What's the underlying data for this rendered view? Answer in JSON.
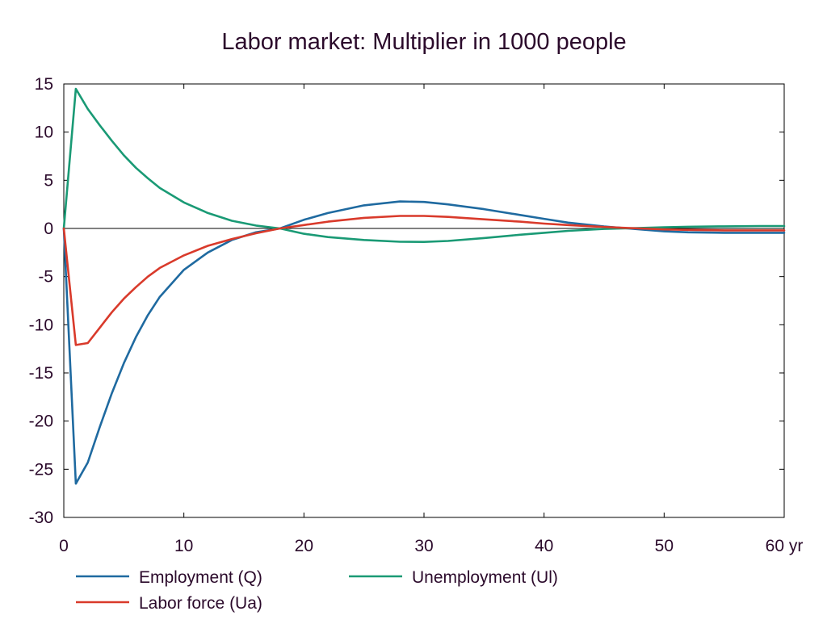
{
  "chart_data": {
    "type": "line",
    "title": "Labor market: Multiplier in 1000 people",
    "xlabel": "",
    "ylabel": "",
    "xlim": [
      0,
      60
    ],
    "ylim": [
      -30,
      15
    ],
    "x_ticks": [
      0,
      10,
      20,
      30,
      40,
      50,
      60
    ],
    "x_tick_labels": [
      "0",
      "10",
      "20",
      "30",
      "40",
      "50",
      "60 yr"
    ],
    "y_ticks": [
      15,
      10,
      5,
      0,
      -5,
      -10,
      -15,
      -20,
      -25,
      -30
    ],
    "y_tick_labels": [
      "15",
      "10",
      "5",
      "0",
      "-5",
      "-10",
      "-15",
      "-20",
      "-25",
      "-30"
    ],
    "grid": false,
    "zero_line": true,
    "legend_position": "bottom",
    "x": [
      0,
      1,
      2,
      3,
      4,
      5,
      6,
      7,
      8,
      10,
      12,
      14,
      16,
      18,
      20,
      22,
      25,
      28,
      30,
      32,
      35,
      38,
      40,
      42,
      45,
      48,
      50,
      52,
      55,
      58,
      60
    ],
    "series": [
      {
        "name": "Employment (Q)",
        "color": "#1f6aa0",
        "values": [
          0,
          -26.5,
          -24.3,
          -20.6,
          -17.1,
          -14.0,
          -11.3,
          -9.0,
          -7.1,
          -4.3,
          -2.5,
          -1.2,
          -0.4,
          0,
          0.9,
          1.6,
          2.4,
          2.8,
          2.75,
          2.5,
          2.0,
          1.4,
          1.0,
          0.6,
          0.2,
          -0.1,
          -0.3,
          -0.4,
          -0.45,
          -0.45,
          -0.45
        ]
      },
      {
        "name": "Unemployment (Ul)",
        "color": "#1a9a75",
        "values": [
          0,
          14.5,
          12.4,
          10.7,
          9.1,
          7.6,
          6.3,
          5.2,
          4.2,
          2.7,
          1.6,
          0.8,
          0.3,
          0,
          -0.55,
          -0.9,
          -1.2,
          -1.38,
          -1.4,
          -1.3,
          -1.0,
          -0.65,
          -0.45,
          -0.25,
          -0.05,
          0.05,
          0.12,
          0.18,
          0.22,
          0.25,
          0.25
        ]
      },
      {
        "name": "Labor force (Ua)",
        "color": "#d93a2b",
        "values": [
          0,
          -12.1,
          -11.9,
          -10.3,
          -8.7,
          -7.3,
          -6.1,
          -5.0,
          -4.1,
          -2.8,
          -1.8,
          -1.1,
          -0.5,
          0,
          0.35,
          0.7,
          1.1,
          1.3,
          1.3,
          1.2,
          0.95,
          0.7,
          0.5,
          0.35,
          0.15,
          0,
          -0.1,
          -0.15,
          -0.2,
          -0.2,
          -0.2
        ]
      }
    ]
  }
}
